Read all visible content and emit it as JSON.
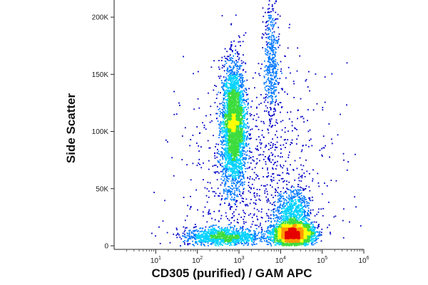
{
  "chart_data": {
    "type": "scatter",
    "title": "",
    "xlabel": "CD305 (purified) / GAM APC",
    "ylabel": "Side Scatter",
    "x_scale": "log",
    "xlim": [
      1,
      1000000
    ],
    "x_ticks": [
      {
        "value": 10,
        "base": "10",
        "exp": "1"
      },
      {
        "value": 100,
        "base": "10",
        "exp": "2"
      },
      {
        "value": 1000,
        "base": "10",
        "exp": "3"
      },
      {
        "value": 10000,
        "base": "10",
        "exp": "4"
      },
      {
        "value": 100000,
        "base": "10",
        "exp": "5"
      },
      {
        "value": 1000000,
        "base": "10",
        "exp": "6"
      }
    ],
    "ylim": [
      0,
      215000
    ],
    "y_ticks": [
      {
        "value": 0,
        "label": "0"
      },
      {
        "value": 50000,
        "label": "50K"
      },
      {
        "value": 100000,
        "label": "100K"
      },
      {
        "value": 150000,
        "label": "150K"
      },
      {
        "value": 200000,
        "label": "200K"
      }
    ],
    "grid": false,
    "legend": "none",
    "color_scale": [
      "#0000c8",
      "#0078ff",
      "#00d2ff",
      "#3cdc3c",
      "#ffff00",
      "#ff9600",
      "#e60000"
    ],
    "series": [
      {
        "values": [
          {
            "x": 750,
            "y": 105000,
            "sx": 0.14,
            "sy": 27000,
            "weight": 0.34
          },
          {
            "x": 6000,
            "y": 160000,
            "sx": 0.09,
            "sy": 30000,
            "weight": 0.05
          },
          {
            "x": 20000,
            "y": 10000,
            "sx": 0.25,
            "sy": 5000,
            "weight": 0.3
          },
          {
            "x": 20000,
            "y": 30000,
            "sx": 0.2,
            "sy": 9000,
            "weight": 0.07
          },
          {
            "x": 400,
            "y": 8000,
            "sx": 0.45,
            "sy": 4000,
            "weight": 0.12
          },
          {
            "x": 3000,
            "y": 55000,
            "sx": 0.9,
            "sy": 50000,
            "weight": 0.12
          }
        ]
      }
    ]
  }
}
